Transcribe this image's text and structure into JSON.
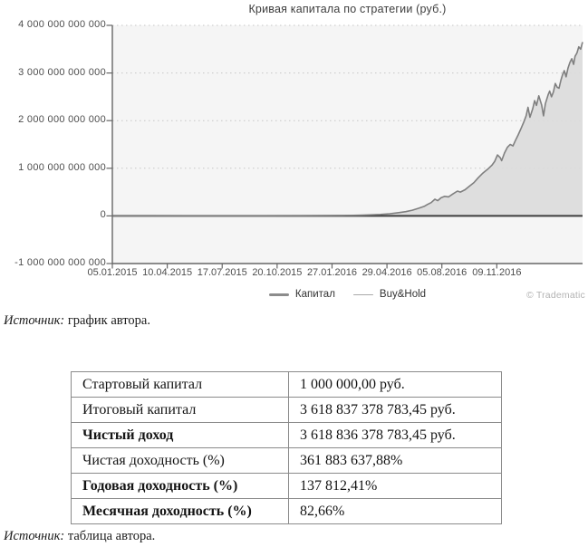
{
  "chart": {
    "title": "Кривая капитала по стратегии (руб.)",
    "copyright": "© Tradematic",
    "legend": [
      {
        "label": "Капитал"
      },
      {
        "label": "Buy&Hold"
      }
    ]
  },
  "chart_data": {
    "type": "area",
    "title": "Кривая капитала по стратегии (руб.)",
    "xlabel": "",
    "ylabel": "",
    "unit": "руб., values in trillions",
    "ylim_trln": [
      -1,
      4
    ],
    "grid": "dotted horizontal gridlines, solid zero line",
    "legend_position": "bottom center",
    "y_ticks": [
      {
        "v": 4,
        "label": "4 000 000 000 000"
      },
      {
        "v": 3,
        "label": "3 000 000 000 000"
      },
      {
        "v": 2,
        "label": "2 000 000 000 000"
      },
      {
        "v": 1,
        "label": "1 000 000 000 000"
      },
      {
        "v": 0,
        "label": "0"
      },
      {
        "v": -1,
        "label": "-1 000 000 000 000"
      }
    ],
    "x_ticks": [
      {
        "t": 0.0,
        "label": "05.01.2015"
      },
      {
        "t": 0.1168,
        "label": "10.04.2015"
      },
      {
        "t": 0.2336,
        "label": "17.07.2015"
      },
      {
        "t": 0.3504,
        "label": "20.10.2015"
      },
      {
        "t": 0.4672,
        "label": "27.01.2016"
      },
      {
        "t": 0.584,
        "label": "29.04.2016"
      },
      {
        "t": 0.7008,
        "label": "05.08.2016"
      },
      {
        "t": 0.8176,
        "label": "09.11.2016"
      }
    ],
    "series": [
      {
        "name": "Капитал",
        "style": "thick gray line with gray area fill",
        "points_t_v_trln": [
          [
            0,
            0
          ],
          [
            0.08,
            0.0005
          ],
          [
            0.16,
            0.001
          ],
          [
            0.24,
            0.0015
          ],
          [
            0.32,
            0.002
          ],
          [
            0.4,
            0.004
          ],
          [
            0.45,
            0.006
          ],
          [
            0.49,
            0.009
          ],
          [
            0.512,
            0.012
          ],
          [
            0.532,
            0.016
          ],
          [
            0.551,
            0.022
          ],
          [
            0.57,
            0.031
          ],
          [
            0.59,
            0.046
          ],
          [
            0.609,
            0.068
          ],
          [
            0.624,
            0.09
          ],
          [
            0.638,
            0.12
          ],
          [
            0.651,
            0.16
          ],
          [
            0.663,
            0.2
          ],
          [
            0.67,
            0.24
          ],
          [
            0.678,
            0.28
          ],
          [
            0.686,
            0.35
          ],
          [
            0.692,
            0.32
          ],
          [
            0.699,
            0.38
          ],
          [
            0.707,
            0.41
          ],
          [
            0.715,
            0.4
          ],
          [
            0.724,
            0.46
          ],
          [
            0.734,
            0.52
          ],
          [
            0.74,
            0.5
          ],
          [
            0.75,
            0.55
          ],
          [
            0.759,
            0.62
          ],
          [
            0.769,
            0.7
          ],
          [
            0.778,
            0.8
          ],
          [
            0.788,
            0.9
          ],
          [
            0.798,
            0.98
          ],
          [
            0.807,
            1.06
          ],
          [
            0.813,
            1.14
          ],
          [
            0.819,
            1.28
          ],
          [
            0.825,
            1.22
          ],
          [
            0.828,
            1.16
          ],
          [
            0.834,
            1.32
          ],
          [
            0.84,
            1.44
          ],
          [
            0.846,
            1.5
          ],
          [
            0.852,
            1.47
          ],
          [
            0.857,
            1.58
          ],
          [
            0.863,
            1.7
          ],
          [
            0.869,
            1.83
          ],
          [
            0.875,
            1.97
          ],
          [
            0.88,
            2.1
          ],
          [
            0.884,
            2.28
          ],
          [
            0.888,
            2.07
          ],
          [
            0.894,
            2.25
          ],
          [
            0.898,
            2.42
          ],
          [
            0.902,
            2.32
          ],
          [
            0.907,
            2.52
          ],
          [
            0.913,
            2.33
          ],
          [
            0.917,
            2.1
          ],
          [
            0.921,
            2.36
          ],
          [
            0.927,
            2.55
          ],
          [
            0.93,
            2.62
          ],
          [
            0.934,
            2.5
          ],
          [
            0.938,
            2.6
          ],
          [
            0.942,
            2.78
          ],
          [
            0.946,
            2.7
          ],
          [
            0.95,
            2.68
          ],
          [
            0.954,
            2.85
          ],
          [
            0.957,
            2.95
          ],
          [
            0.961,
            3.05
          ],
          [
            0.965,
            2.92
          ],
          [
            0.969,
            3.1
          ],
          [
            0.973,
            3.22
          ],
          [
            0.977,
            3.3
          ],
          [
            0.981,
            3.18
          ],
          [
            0.984,
            3.35
          ],
          [
            0.988,
            3.42
          ],
          [
            0.992,
            3.55
          ],
          [
            0.996,
            3.5
          ],
          [
            1,
            3.65
          ]
        ]
      },
      {
        "name": "Buy&Hold",
        "style": "thin light-gray line, flat along zero",
        "points_t_v_trln": [
          [
            0,
            0
          ],
          [
            1,
            0.002
          ]
        ]
      }
    ],
    "start_value_rub": "1 000 000,00",
    "final_value_rub": "3 618 837 378 783,45",
    "colors": {
      "plot_bg": "#f5f5f5",
      "grid": "#c6c6c6",
      "axis": "#666666",
      "zero_line": "#3d3d3d",
      "capital_line": "#7f7f7f",
      "capital_fill": "#dcdcdc",
      "buyhold_line": "#adadad"
    }
  },
  "source_chart": {
    "prefix": "Источник:",
    "text": " график автора."
  },
  "source_table": {
    "prefix": "Источник:",
    "text": " таблица автора."
  },
  "table": {
    "rows": [
      {
        "label": "Стартовый капитал",
        "value": "1 000 000,00 руб.",
        "bold": false
      },
      {
        "label": "Итоговый капитал",
        "value": "3 618 837 378 783,45 руб.",
        "bold": false
      },
      {
        "label": "Чистый доход",
        "value": "3 618 836 378 783,45 руб.",
        "bold": true
      },
      {
        "label": "Чистая доходность (%)",
        "value": "361 883 637,88%",
        "bold": false
      },
      {
        "label": "Годовая доходность (%)",
        "value": "137 812,41%",
        "bold": true
      },
      {
        "label": "Месячная доходность (%)",
        "value": "82,66%",
        "bold": true
      }
    ]
  }
}
